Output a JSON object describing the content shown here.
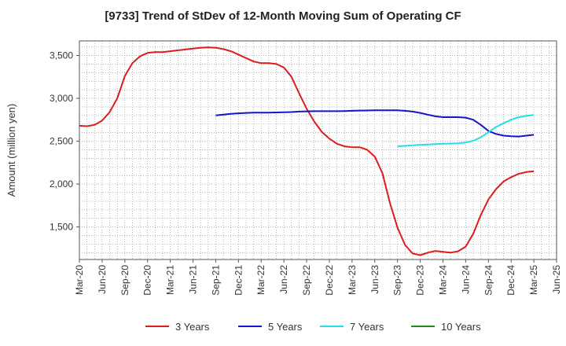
{
  "chart_data": {
    "type": "line",
    "title": "[9733]  Trend of StDev of 12-Month Moving Sum of Operating CF",
    "ylabel": "Amount (million yen)",
    "xlabel": "",
    "ylim": [
      1120,
      3670
    ],
    "y_ticks": [
      1500,
      2000,
      2500,
      3000,
      3500
    ],
    "y_tick_labels": [
      "1,500",
      "2,000",
      "2,500",
      "3,000",
      "3,500"
    ],
    "x_ticks": [
      "Mar-20",
      "Jun-20",
      "Sep-20",
      "Dec-20",
      "Mar-21",
      "Jun-21",
      "Sep-21",
      "Dec-21",
      "Mar-22",
      "Jun-22",
      "Sep-22",
      "Dec-22",
      "Mar-23",
      "Jun-23",
      "Sep-23",
      "Dec-23",
      "Mar-24",
      "Jun-24",
      "Sep-24",
      "Dec-24",
      "Mar-25",
      "Jun-25"
    ],
    "x_start": "Mar-20",
    "grid": true,
    "legend_position": "bottom",
    "series": [
      {
        "name": "3 Years",
        "color": "#dd1c1c",
        "x": [
          "Mar-20",
          "Apr-20",
          "May-20",
          "Jun-20",
          "Jul-20",
          "Aug-20",
          "Sep-20",
          "Oct-20",
          "Nov-20",
          "Dec-20",
          "Jan-21",
          "Feb-21",
          "Mar-21",
          "Apr-21",
          "May-21",
          "Jun-21",
          "Jul-21",
          "Aug-21",
          "Sep-21",
          "Oct-21",
          "Nov-21",
          "Dec-21",
          "Jan-22",
          "Feb-22",
          "Mar-22",
          "Apr-22",
          "May-22",
          "Jun-22",
          "Jul-22",
          "Aug-22",
          "Sep-22",
          "Oct-22",
          "Nov-22",
          "Dec-22",
          "Jan-23",
          "Feb-23",
          "Mar-23",
          "Apr-23",
          "May-23",
          "Jun-23",
          "Jul-23",
          "Aug-23",
          "Sep-23",
          "Oct-23",
          "Nov-23",
          "Dec-23",
          "Jan-24",
          "Feb-24",
          "Mar-24",
          "Apr-24",
          "May-24",
          "Jun-24",
          "Jul-24",
          "Aug-24",
          "Sep-24",
          "Oct-24",
          "Nov-24",
          "Dec-24",
          "Jan-25",
          "Feb-25",
          "Mar-25"
        ],
        "values": [
          2680,
          2675,
          2690,
          2740,
          2840,
          3000,
          3260,
          3410,
          3490,
          3530,
          3540,
          3540,
          3550,
          3560,
          3570,
          3580,
          3590,
          3595,
          3590,
          3575,
          3550,
          3510,
          3470,
          3430,
          3410,
          3410,
          3400,
          3360,
          3250,
          3060,
          2880,
          2730,
          2610,
          2530,
          2470,
          2440,
          2430,
          2430,
          2400,
          2320,
          2130,
          1780,
          1490,
          1290,
          1190,
          1170,
          1200,
          1220,
          1210,
          1200,
          1215,
          1270,
          1420,
          1640,
          1820,
          1940,
          2030,
          2080,
          2120,
          2140,
          2150
        ]
      },
      {
        "name": "5 Years",
        "color": "#1414c8",
        "x": [
          "Sep-21",
          "Oct-21",
          "Nov-21",
          "Dec-21",
          "Jan-22",
          "Feb-22",
          "Mar-22",
          "Apr-22",
          "May-22",
          "Jun-22",
          "Jul-22",
          "Aug-22",
          "Sep-22",
          "Oct-22",
          "Nov-22",
          "Dec-22",
          "Jan-23",
          "Feb-23",
          "Mar-23",
          "Apr-23",
          "May-23",
          "Jun-23",
          "Jul-23",
          "Aug-23",
          "Sep-23",
          "Oct-23",
          "Nov-23",
          "Dec-23",
          "Jan-24",
          "Feb-24",
          "Mar-24",
          "Apr-24",
          "May-24",
          "Jun-24",
          "Jul-24",
          "Aug-24",
          "Sep-24",
          "Oct-24",
          "Nov-24",
          "Dec-24",
          "Jan-25",
          "Feb-25",
          "Mar-25"
        ],
        "values": [
          2800,
          2810,
          2820,
          2825,
          2830,
          2833,
          2833,
          2833,
          2835,
          2837,
          2840,
          2845,
          2848,
          2850,
          2850,
          2850,
          2850,
          2852,
          2855,
          2857,
          2858,
          2860,
          2860,
          2860,
          2860,
          2855,
          2845,
          2830,
          2810,
          2790,
          2780,
          2780,
          2780,
          2775,
          2750,
          2690,
          2620,
          2585,
          2565,
          2558,
          2555,
          2565,
          2575
        ]
      },
      {
        "name": "7 Years",
        "color": "#22e0e6",
        "x": [
          "Sep-23",
          "Oct-23",
          "Nov-23",
          "Dec-23",
          "Jan-24",
          "Feb-24",
          "Mar-24",
          "Apr-24",
          "May-24",
          "Jun-24",
          "Jul-24",
          "Aug-24",
          "Sep-24",
          "Oct-24",
          "Nov-24",
          "Dec-24",
          "Jan-25",
          "Feb-25",
          "Mar-25"
        ],
        "values": [
          2440,
          2445,
          2452,
          2458,
          2462,
          2466,
          2470,
          2472,
          2476,
          2485,
          2505,
          2545,
          2605,
          2665,
          2710,
          2750,
          2780,
          2795,
          2805
        ]
      },
      {
        "name": "10 Years",
        "color": "#1e8c1e",
        "x": [],
        "values": []
      }
    ]
  }
}
